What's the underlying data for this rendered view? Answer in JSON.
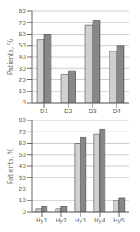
{
  "chart_data": [
    {
      "type": "bar",
      "y_label": "Patients, %",
      "categories": [
        "D1",
        "D2",
        "D3",
        "D4"
      ],
      "series": [
        {
          "color": "#d0d0d0",
          "values": [
            55,
            25,
            68,
            45
          ]
        },
        {
          "color": "#888888",
          "values": [
            60,
            28,
            72,
            50
          ]
        }
      ],
      "ylim": [
        0,
        80
      ],
      "yticks": [
        0,
        10,
        20,
        30,
        40,
        50,
        60,
        70,
        80
      ],
      "grid": true
    },
    {
      "type": "bar",
      "y_label": "Patients, %",
      "categories": [
        "Hy1",
        "Hy2",
        "Hy3",
        "Hy4",
        "Hy5"
      ],
      "series": [
        {
          "color": "#d0d0d0",
          "values": [
            3,
            3,
            60,
            68,
            10
          ]
        },
        {
          "color": "#888888",
          "values": [
            5,
            5,
            65,
            72,
            12
          ]
        }
      ],
      "ylim": [
        0,
        80
      ],
      "yticks": [
        0,
        10,
        20,
        30,
        40,
        50,
        60,
        70,
        80
      ],
      "grid": true
    }
  ]
}
